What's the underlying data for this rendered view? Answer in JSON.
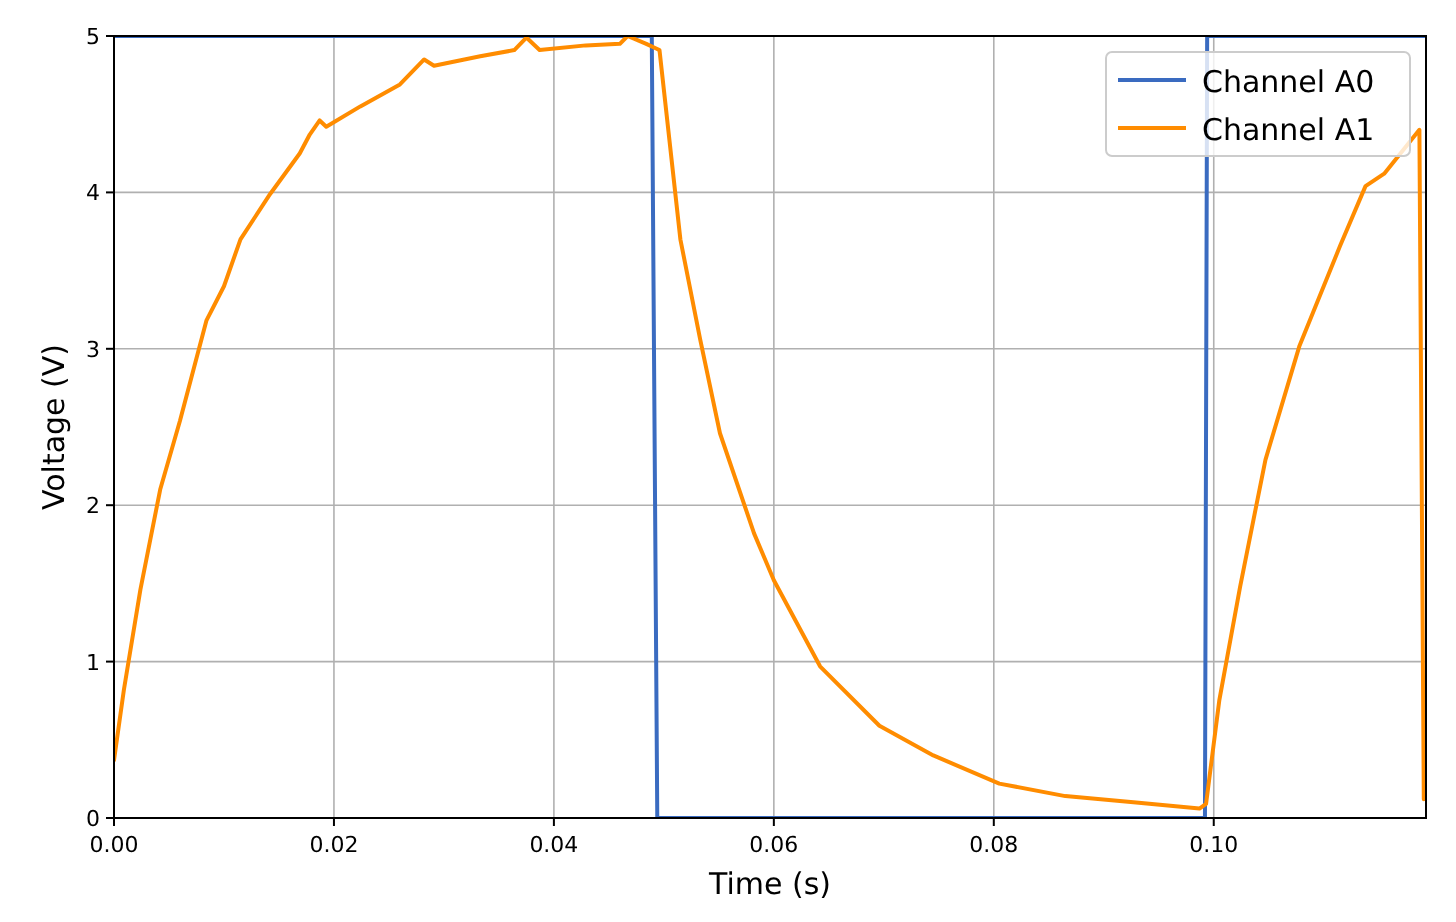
{
  "chart_data": {
    "type": "line",
    "xlabel": "Time (s)",
    "ylabel": "Voltage (V)",
    "xlim": [
      0,
      0.1193
    ],
    "ylim": [
      0,
      5
    ],
    "xticks": [
      {
        "value": 0,
        "label": "0.00"
      },
      {
        "value": 0.02,
        "label": "0.02"
      },
      {
        "value": 0.04,
        "label": "0.04"
      },
      {
        "value": 0.06,
        "label": "0.06"
      },
      {
        "value": 0.08,
        "label": "0.08"
      },
      {
        "value": 0.1,
        "label": "0.10"
      }
    ],
    "yticks": [
      0,
      1,
      2,
      3,
      4,
      5
    ],
    "grid": true,
    "legend": "top right",
    "line_style": "solid",
    "marker": "none",
    "series": [
      {
        "name": "Channel A0",
        "color": "#3a6bc0",
        "x": [
          0,
          0.0489,
          0.0494,
          0.0992,
          0.0994,
          0.1193
        ],
        "values": [
          5,
          5,
          0,
          0,
          5,
          5
        ]
      },
      {
        "name": "Channel A1",
        "color": "#ff8c00",
        "x": [
          0,
          0.0009,
          0.0024,
          0.0042,
          0.006,
          0.0084,
          0.01,
          0.0115,
          0.0142,
          0.0169,
          0.0178,
          0.0187,
          0.0193,
          0.0224,
          0.026,
          0.0282,
          0.0291,
          0.0333,
          0.0364,
          0.0375,
          0.0387,
          0.0429,
          0.046,
          0.0467,
          0.0484,
          0.0493,
          0.0496,
          0.0515,
          0.0533,
          0.0551,
          0.0582,
          0.06,
          0.0642,
          0.0696,
          0.0745,
          0.0805,
          0.0865,
          0.0927,
          0.0987,
          0.0993,
          0.1005,
          0.1024,
          0.1047,
          0.1078,
          0.1115,
          0.1138,
          0.1155,
          0.1187,
          0.1191
        ],
        "values": [
          0.37,
          0.82,
          1.46,
          2.1,
          2.54,
          3.18,
          3.4,
          3.7,
          3.99,
          4.25,
          4.37,
          4.46,
          4.42,
          4.55,
          4.69,
          4.85,
          4.81,
          4.87,
          4.91,
          4.99,
          4.91,
          4.94,
          4.95,
          5,
          4.95,
          4.92,
          4.91,
          3.7,
          3.06,
          2.46,
          1.82,
          1.52,
          0.97,
          0.59,
          0.4,
          0.22,
          0.14,
          0.1,
          0.06,
          0.09,
          0.75,
          1.48,
          2.29,
          3.02,
          3.66,
          4.04,
          4.12,
          4.4,
          0.12
        ]
      }
    ]
  }
}
